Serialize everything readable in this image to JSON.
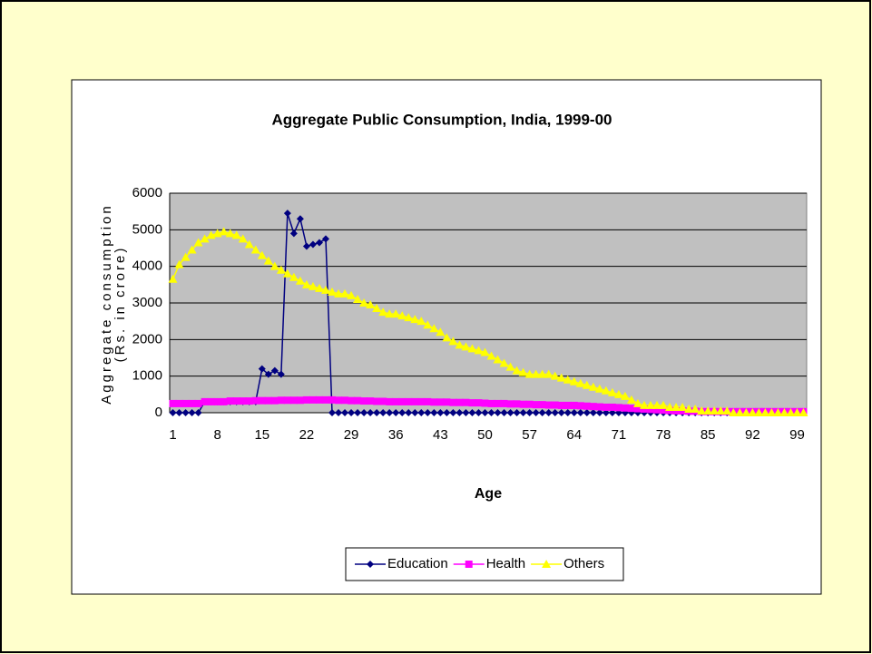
{
  "chart_data": {
    "type": "line",
    "title": "Aggregate Public Consumption, India, 1999-00",
    "xlabel": "Age",
    "ylabel": [
      "Aggregate consumption",
      "(Rs. in crore)"
    ],
    "categories": [
      "1",
      null,
      null,
      null,
      null,
      null,
      null,
      "8",
      null,
      null,
      null,
      null,
      null,
      null,
      "15",
      null,
      null,
      null,
      null,
      null,
      null,
      "22",
      null,
      null,
      null,
      null,
      null,
      null,
      "29",
      null,
      null,
      null,
      null,
      null,
      null,
      "36",
      null,
      null,
      null,
      null,
      null,
      null,
      "43",
      null,
      null,
      null,
      null,
      null,
      null,
      "50",
      null,
      null,
      null,
      null,
      null,
      null,
      "57",
      null,
      null,
      null,
      null,
      null,
      null,
      "64",
      null,
      null,
      null,
      null,
      null,
      null,
      "71",
      null,
      null,
      null,
      null,
      null,
      null,
      "78",
      null,
      null,
      null,
      null,
      null,
      null,
      "85",
      null,
      null,
      null,
      null,
      null,
      null,
      "92",
      null,
      null,
      null,
      null,
      null,
      null,
      "99",
      null
    ],
    "series": [
      {
        "name": "Education",
        "color": "#000080",
        "marker": "diamond",
        "values": [
          0,
          0,
          0,
          0,
          0,
          300,
          300,
          300,
          300,
          300,
          300,
          300,
          300,
          300,
          1200,
          1050,
          1150,
          1050,
          5450,
          4900,
          5300,
          4550,
          4600,
          4650,
          4750,
          0,
          0,
          0,
          0,
          0,
          0,
          0,
          0,
          0,
          0,
          0,
          0,
          0,
          0,
          0,
          0,
          0,
          0,
          0,
          0,
          0,
          0,
          0,
          0,
          0,
          0,
          0,
          0,
          0,
          0,
          0,
          0,
          0,
          0,
          0,
          0,
          0,
          0,
          0,
          0,
          0,
          0,
          0,
          0,
          0,
          0,
          0,
          0,
          0,
          0,
          0,
          0,
          0,
          0,
          0,
          0,
          0,
          0,
          0,
          0,
          0,
          0,
          0,
          0,
          0,
          0,
          0,
          0,
          0,
          0,
          0,
          0,
          0,
          0,
          0
        ]
      },
      {
        "name": "Health",
        "color": "#ff00ff",
        "marker": "square",
        "values": [
          250,
          250,
          250,
          250,
          250,
          300,
          300,
          300,
          300,
          320,
          320,
          320,
          320,
          330,
          330,
          330,
          330,
          340,
          340,
          340,
          340,
          350,
          350,
          350,
          350,
          350,
          340,
          340,
          330,
          330,
          320,
          320,
          310,
          310,
          300,
          300,
          300,
          300,
          300,
          300,
          300,
          290,
          290,
          290,
          280,
          280,
          280,
          270,
          270,
          260,
          250,
          250,
          250,
          240,
          240,
          230,
          230,
          220,
          220,
          210,
          210,
          200,
          200,
          200,
          190,
          180,
          170,
          160,
          150,
          150,
          140,
          130,
          120,
          110,
          100,
          90,
          80,
          70,
          60,
          50,
          50,
          40,
          40,
          30,
          30,
          30,
          30,
          30,
          30,
          30,
          30,
          30,
          30,
          30,
          30,
          30,
          30,
          30,
          30,
          30
        ]
      },
      {
        "name": "Others",
        "color": "#ffff00",
        "marker": "triangle",
        "values": [
          3650,
          4050,
          4250,
          4450,
          4650,
          4750,
          4850,
          4900,
          4950,
          4900,
          4850,
          4750,
          4600,
          4450,
          4300,
          4150,
          4000,
          3900,
          3800,
          3700,
          3600,
          3500,
          3450,
          3400,
          3350,
          3300,
          3250,
          3250,
          3200,
          3100,
          3000,
          2950,
          2850,
          2750,
          2700,
          2700,
          2650,
          2600,
          2550,
          2500,
          2400,
          2300,
          2200,
          2050,
          1950,
          1850,
          1800,
          1750,
          1700,
          1650,
          1550,
          1450,
          1350,
          1250,
          1150,
          1100,
          1050,
          1050,
          1050,
          1050,
          1000,
          950,
          900,
          850,
          800,
          750,
          700,
          650,
          600,
          550,
          500,
          450,
          350,
          250,
          200,
          200,
          200,
          200,
          150,
          150,
          150,
          100,
          100,
          50,
          50,
          50,
          50,
          50,
          0,
          0,
          0,
          0,
          0,
          0,
          0,
          0,
          0,
          0,
          0,
          0
        ]
      }
    ],
    "ylim": [
      0,
      6000
    ],
    "yticks": [
      0,
      1000,
      2000,
      3000,
      4000,
      5000,
      6000
    ],
    "grid": true,
    "legend": "bottom"
  }
}
